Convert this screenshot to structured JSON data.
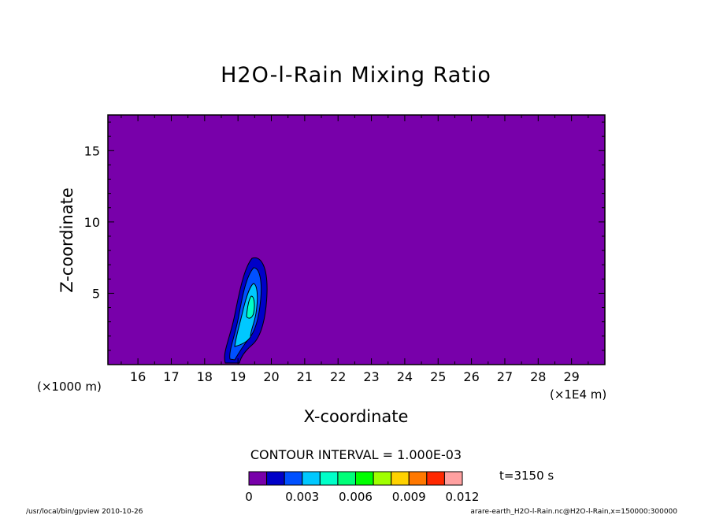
{
  "chart_data": {
    "type": "heatmap",
    "title": "H2O-l-Rain Mixing Ratio",
    "xlabel": "X-coordinate",
    "ylabel": "Z-coordinate",
    "x_unit_label": "(×1E4 m)",
    "y_unit_label": "(×1000 m)",
    "xlim": [
      15.1,
      30.0
    ],
    "ylim": [
      0,
      17.5
    ],
    "x_ticks": [
      "16",
      "17",
      "18",
      "19",
      "20",
      "21",
      "22",
      "23",
      "24",
      "25",
      "26",
      "27",
      "28",
      "29"
    ],
    "y_ticks": [
      "5",
      "10",
      "15"
    ],
    "contour_interval_label": "CONTOUR INTERVAL = 1.000E-03",
    "time_label": "t=3150 s",
    "colorbar": {
      "colors": [
        "#7800aa",
        "#0000c8",
        "#0050ff",
        "#00c8ff",
        "#00ffc8",
        "#00ff78",
        "#00ff00",
        "#a0ff00",
        "#ffd200",
        "#ff7800",
        "#ff2800",
        "#ffa0a0"
      ],
      "tick_labels": [
        "0",
        "0.003",
        "0.006",
        "0.009",
        "0.012"
      ]
    },
    "background_value_level": 0,
    "rain_cell": {
      "x_center": 19.3,
      "z_top": 7.6,
      "z_bottom": 0,
      "max_level_approx": 4
    }
  },
  "footer": {
    "left": "/usr/local/bin/gpview  2010-10-26",
    "right": "arare-earth_H2O-l-Rain.nc@H2O-l-Rain,x=150000:300000"
  }
}
